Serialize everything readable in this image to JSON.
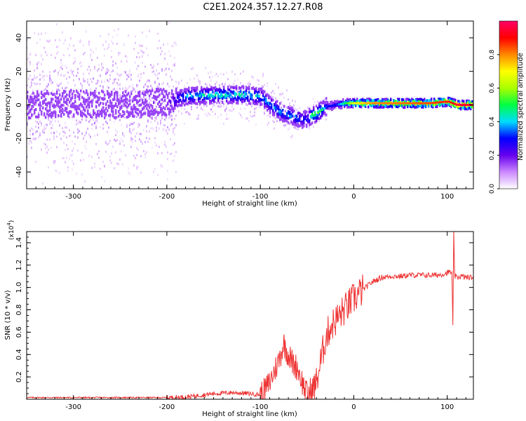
{
  "title": "C2E1.2024.357.12.27.R08",
  "chart_data": [
    {
      "type": "heatmap",
      "xlabel": "Height of straight line (km)",
      "ylabel": "Frequency (Hz)",
      "xlim": [
        -350,
        128
      ],
      "ylim": [
        -50,
        50
      ],
      "xticks": [
        -300,
        -200,
        -100,
        0,
        100
      ],
      "yticks": [
        -40,
        -20,
        0,
        20,
        40
      ],
      "grid": false,
      "colorbar": {
        "label": "Normalized spectral amplitude",
        "range": [
          0,
          1
        ],
        "ticks": [
          0.0,
          0.2,
          0.4,
          0.6,
          0.8
        ],
        "colormap": [
          "#ffffff",
          "#cc88ff",
          "#6600ee",
          "#0000ff",
          "#00ddff",
          "#00ff44",
          "#aaff00",
          "#ffff00",
          "#ff8800",
          "#ff0000",
          "#ff0066"
        ]
      },
      "ridge": {
        "x": [
          -350,
          -300,
          -250,
          -200,
          -180,
          -150,
          -120,
          -100,
          -90,
          -80,
          -70,
          -60,
          -55,
          -50,
          -45,
          -40,
          -35,
          -30,
          -20,
          -10,
          0,
          20,
          50,
          80,
          100,
          110,
          128
        ],
        "y": [
          0,
          1,
          0,
          2,
          5,
          6,
          6,
          5,
          0,
          -4,
          -6,
          -8,
          -9,
          -8,
          -6,
          -5,
          -3,
          -1,
          0,
          1,
          1,
          1,
          1,
          1,
          2,
          0,
          0
        ],
        "amplitude": [
          0.12,
          0.12,
          0.13,
          0.2,
          0.45,
          0.5,
          0.5,
          0.45,
          0.4,
          0.45,
          0.45,
          0.4,
          0.35,
          0.35,
          0.6,
          0.55,
          0.5,
          0.3,
          0.3,
          0.5,
          0.7,
          0.8,
          0.82,
          0.85,
          0.88,
          0.95,
          0.95
        ]
      }
    },
    {
      "type": "line",
      "xlabel": "Height of straight line (km)",
      "ylabel": "SNR (10 * v/v)",
      "y_multiplier": "(x10^4)",
      "xlim": [
        -350,
        128
      ],
      "ylim": [
        0,
        1.5
      ],
      "xticks": [
        -300,
        -200,
        -100,
        0,
        100
      ],
      "yticks": [
        0.2,
        0.4,
        0.6,
        0.8,
        1.0,
        1.2,
        1.4
      ],
      "color": "#ee3333",
      "series": [
        {
          "x": [
            -350,
            -300,
            -250,
            -200,
            -180,
            -170,
            -150,
            -130,
            -110,
            -100,
            -95,
            -90,
            -85,
            -80,
            -75,
            -70,
            -65,
            -60,
            -55,
            -50,
            -45,
            -40,
            -35,
            -30,
            -25,
            -20,
            -15,
            -10,
            -5,
            0,
            10,
            20,
            30,
            40,
            50,
            60,
            70,
            80,
            90,
            95,
            100,
            103,
            105,
            106,
            107,
            108,
            110,
            115,
            120,
            128
          ],
          "y": [
            0.015,
            0.015,
            0.015,
            0.015,
            0.02,
            0.03,
            0.05,
            0.06,
            0.05,
            0.04,
            0.08,
            0.15,
            0.25,
            0.35,
            0.5,
            0.4,
            0.32,
            0.28,
            0.15,
            0.04,
            0.06,
            0.15,
            0.35,
            0.55,
            0.65,
            0.7,
            0.75,
            0.8,
            0.85,
            0.9,
            0.98,
            1.05,
            1.09,
            1.1,
            1.1,
            1.11,
            1.11,
            1.11,
            1.11,
            1.12,
            1.13,
            1.14,
            1.12,
            0.64,
            1.48,
            1.1,
            1.09,
            1.1,
            1.09,
            1.09
          ]
        }
      ]
    }
  ]
}
